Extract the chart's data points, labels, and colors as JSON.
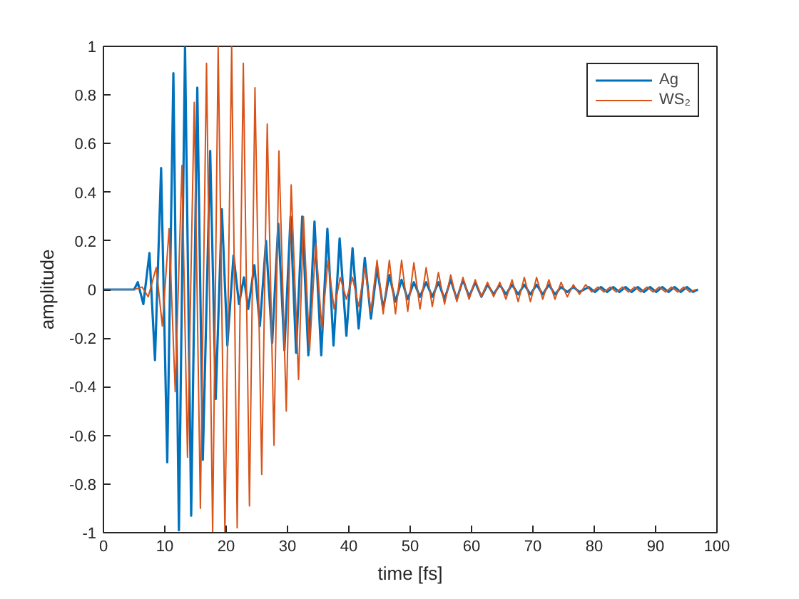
{
  "chart_data": {
    "type": "line",
    "xlabel": "time [fs]",
    "ylabel": "amplitude",
    "xlim": [
      0,
      100
    ],
    "ylim": [
      -1,
      1
    ],
    "xticks": [
      0,
      10,
      20,
      30,
      40,
      50,
      60,
      70,
      80,
      90,
      100
    ],
    "yticks": [
      -1,
      -0.8,
      -0.6,
      -0.4,
      -0.2,
      0,
      0.2,
      0.4,
      0.6,
      0.8,
      1
    ],
    "grid": false,
    "legend": "top right",
    "marker": "none",
    "line_style": "solid",
    "series": [
      {
        "name": "Ag",
        "color": "#0072bd",
        "x": [
          0,
          5.0,
          5.6,
          6.5,
          7.5,
          8.4,
          9.4,
          10.4,
          11.4,
          12.3,
          13.3,
          14.3,
          15.3,
          16.2,
          17.4,
          18.3,
          19.3,
          20.2,
          21.2,
          22.1,
          22.9,
          23.6,
          24.6,
          25.5,
          26.5,
          27.5,
          28.5,
          29.5,
          30.5,
          31.4,
          32.4,
          33.4,
          34.4,
          35.5,
          36.5,
          37.5,
          38.5,
          39.6,
          40.6,
          41.6,
          42.6,
          43.6,
          44.6,
          45.6,
          46.6,
          47.6,
          48.6,
          49.6,
          50.6,
          51.6,
          52.6,
          53.6,
          54.6,
          55.6,
          56.6,
          57.6,
          58.6,
          59.6,
          60.6,
          61.6,
          62.6,
          63.6,
          64.6,
          65.6,
          66.6,
          67.6,
          68.6,
          69.6,
          70.6,
          71.6,
          72.6,
          73.6,
          74.6,
          75.6,
          76.6,
          77.6,
          79.1,
          80.1,
          81.1,
          82.1,
          83.1,
          84.1,
          85.1,
          86.1,
          87.1,
          88.1,
          89.1,
          90.1,
          91.1,
          92.1,
          93.1,
          94.1,
          95.1,
          96.1,
          96.9
        ],
        "values": [
          0,
          0,
          0.03,
          -0.06,
          0.15,
          -0.29,
          0.5,
          -0.71,
          0.89,
          -0.99,
          1.0,
          -0.93,
          0.83,
          -0.7,
          0.57,
          -0.45,
          0.33,
          -0.23,
          0.14,
          -0.06,
          0.05,
          -0.08,
          0.1,
          -0.15,
          0.2,
          -0.22,
          0.27,
          -0.25,
          0.3,
          -0.26,
          0.3,
          -0.27,
          0.28,
          -0.27,
          0.25,
          -0.23,
          0.21,
          -0.19,
          0.17,
          -0.16,
          0.13,
          -0.12,
          0.09,
          -0.08,
          0.06,
          -0.05,
          0.04,
          -0.04,
          0.03,
          -0.03,
          0.03,
          -0.03,
          0.03,
          -0.04,
          0.04,
          -0.04,
          0.04,
          -0.03,
          0.03,
          -0.03,
          0.02,
          -0.02,
          0.02,
          -0.02,
          0.02,
          -0.02,
          0.02,
          -0.02,
          0.02,
          -0.02,
          0.02,
          -0.02,
          0.01,
          -0.01,
          0.01,
          -0.01,
          0.01,
          -0.01,
          0.01,
          -0.01,
          0.01,
          -0.01,
          0.01,
          -0.01,
          0.01,
          -0.01,
          0.01,
          -0.01,
          0.01,
          -0.01,
          0.01,
          -0.01,
          0.01,
          -0.01,
          0
        ]
      },
      {
        "name": "WS₂",
        "color": "#d95319",
        "x": [
          0,
          5.0,
          6.3,
          7.3,
          8.6,
          9.6,
          10.7,
          11.7,
          12.8,
          13.7,
          14.8,
          15.8,
          16.8,
          17.8,
          18.7,
          19.8,
          20.9,
          21.8,
          22.8,
          23.8,
          24.7,
          25.8,
          26.7,
          27.8,
          28.6,
          29.8,
          30.6,
          31.8,
          32.6,
          33.6,
          34.6,
          35.6,
          36.6,
          37.6,
          38.6,
          39.6,
          40.6,
          41.6,
          42.6,
          43.6,
          44.6,
          45.6,
          46.6,
          47.6,
          48.6,
          49.6,
          50.6,
          51.6,
          52.6,
          53.6,
          54.6,
          55.6,
          56.6,
          57.6,
          58.6,
          59.6,
          60.6,
          61.6,
          62.6,
          63.6,
          64.6,
          65.6,
          66.6,
          67.6,
          68.6,
          69.6,
          70.6,
          71.6,
          72.6,
          73.6,
          74.6,
          75.6,
          76.6,
          77.6,
          78.6,
          79.6,
          80.6,
          81.6,
          82.6,
          83.6,
          84.6,
          85.6,
          86.6,
          87.6,
          88.6,
          89.6,
          90.6,
          91.6,
          92.6,
          93.6,
          94.6,
          95.6,
          96.6
        ],
        "values": [
          0,
          0,
          0.01,
          -0.03,
          0.09,
          -0.15,
          0.25,
          -0.42,
          0.51,
          -0.69,
          0.77,
          -0.9,
          0.93,
          -1.0,
          1.0,
          -1.0,
          1.0,
          -0.98,
          0.93,
          -0.89,
          0.83,
          -0.76,
          0.68,
          -0.64,
          0.57,
          -0.5,
          0.43,
          -0.37,
          0.3,
          -0.25,
          0.19,
          -0.16,
          0.12,
          -0.08,
          0.05,
          -0.04,
          0.05,
          -0.07,
          0.09,
          -0.09,
          0.12,
          -0.1,
          0.12,
          -0.1,
          0.12,
          -0.09,
          0.11,
          -0.08,
          0.09,
          -0.07,
          0.07,
          -0.06,
          0.06,
          -0.05,
          0.05,
          -0.04,
          0.04,
          -0.03,
          0.03,
          -0.03,
          0.03,
          -0.04,
          0.04,
          -0.05,
          0.05,
          -0.05,
          0.05,
          -0.04,
          0.04,
          -0.04,
          0.03,
          -0.03,
          0.02,
          -0.02,
          0.02,
          -0.01,
          0.01,
          -0.01,
          0.01,
          -0.01,
          0.01,
          -0.01,
          0.01,
          -0.01,
          0.01,
          -0.01,
          0.01,
          -0.01,
          0.01,
          -0.01,
          0.01,
          -0.01,
          0
        ]
      }
    ]
  }
}
